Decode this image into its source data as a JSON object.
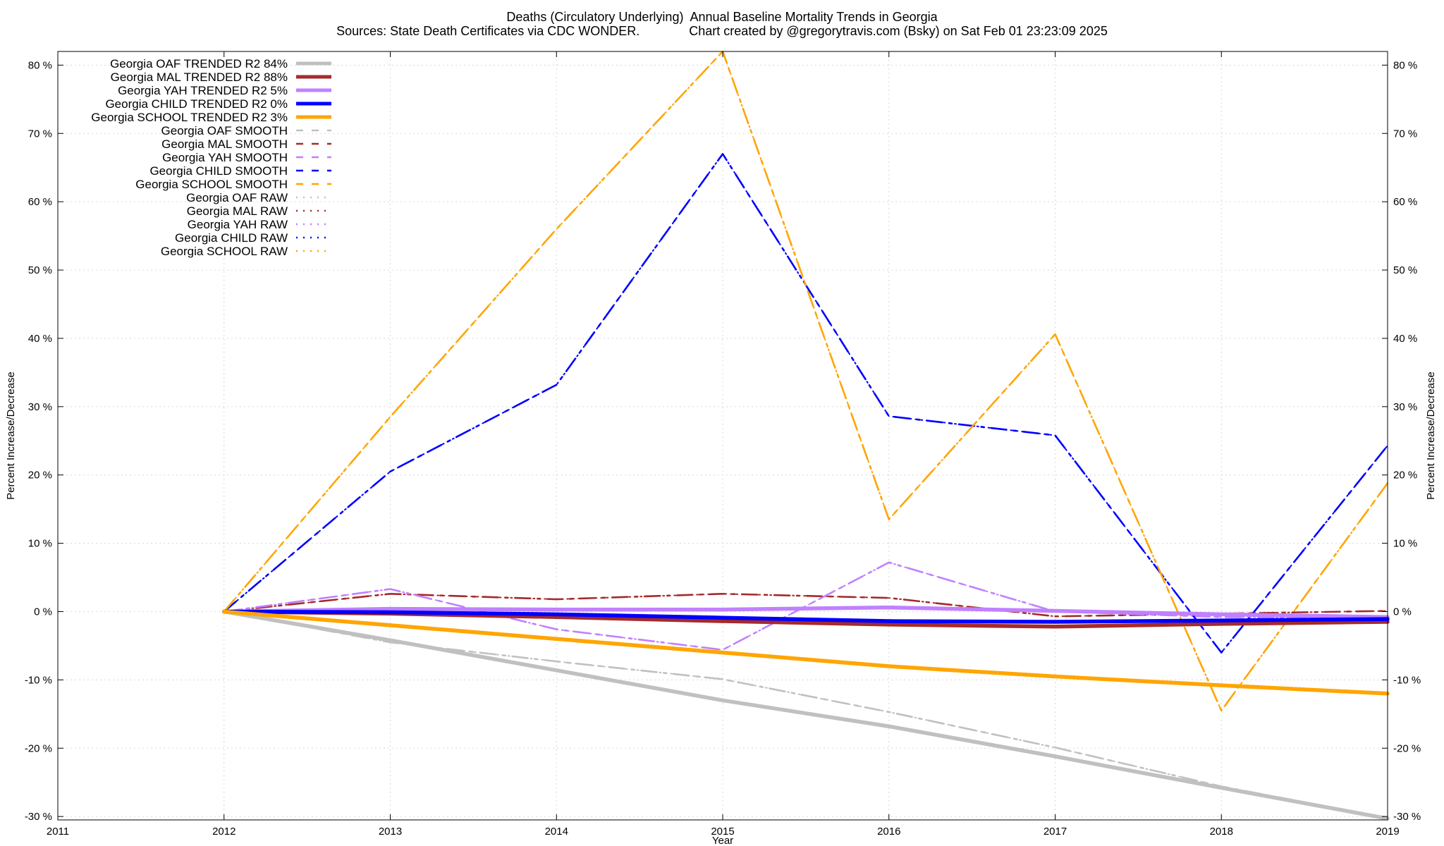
{
  "chart_data": {
    "type": "line",
    "title": "Deaths (Circulatory Underlying)  Annual Baseline Mortality Trends in Georgia",
    "subtitle": "Sources: State Death Certificates via CDC WONDER.              Chart created by @gregorytravis.com (Bsky) on Sat Feb 01 23:23:09 2025",
    "xlabel": "Year",
    "ylabel": "Percent Increase/Decrease",
    "ylabel_right": "Percent Increase/Decrease",
    "xlim": [
      2011,
      2019
    ],
    "ylim": [
      -30.5,
      82
    ],
    "x_ticks": [
      "2011",
      "2012",
      "2013",
      "2014",
      "2015",
      "2016",
      "2017",
      "2018",
      "2019"
    ],
    "y_ticks": [
      "-30 %",
      "-20 %",
      "-10 %",
      "0 %",
      "10 %",
      "20 %",
      "30 %",
      "40 %",
      "50 %",
      "60 %",
      "70 %",
      "80 %"
    ],
    "grid": true,
    "legend_position": "top-left",
    "x": [
      2012,
      2013,
      2014,
      2015,
      2016,
      2017,
      2018,
      2019
    ],
    "series": [
      {
        "name": "Georgia OAF TRENDED R2  84%",
        "style": "trend",
        "color": "#c0c0c0",
        "values": [
          0,
          -4.2,
          -8.6,
          -13.0,
          -16.8,
          -21.2,
          -25.8,
          -30.3
        ]
      },
      {
        "name": "Georgia MAL TRENDED R2  88%",
        "style": "trend",
        "color": "#a52a2a",
        "values": [
          0,
          -0.3,
          -0.8,
          -1.4,
          -1.9,
          -2.2,
          -1.8,
          -1.5
        ]
      },
      {
        "name": "Georgia YAH TRENDED R2   5%",
        "style": "trend",
        "color": "#c080ff",
        "values": [
          0,
          0.4,
          0.3,
          0.3,
          0.6,
          0.1,
          -0.4,
          -0.8
        ]
      },
      {
        "name": "Georgia CHILD TRENDED R2   0%",
        "style": "trend",
        "color": "#0000ff",
        "values": [
          0,
          -0.1,
          -0.4,
          -0.9,
          -1.4,
          -1.5,
          -1.3,
          -1.1
        ]
      },
      {
        "name": "Georgia SCHOOL TRENDED R2   3%",
        "style": "trend",
        "color": "#ffa500",
        "values": [
          0,
          -2.0,
          -4.0,
          -6.0,
          -8.0,
          -9.5,
          -10.8,
          -12.0
        ]
      },
      {
        "name": "Georgia OAF SMOOTH",
        "style": "smooth",
        "color": "#c0c0c0",
        "values": [
          0,
          -4.5,
          -7.3,
          -9.9,
          -14.7,
          -19.9,
          -25.6,
          -30.2
        ]
      },
      {
        "name": "Georgia MAL SMOOTH",
        "style": "smooth",
        "color": "#a52a2a",
        "values": [
          0,
          2.6,
          1.8,
          2.6,
          2.0,
          -0.7,
          -0.3,
          0.1
        ]
      },
      {
        "name": "Georgia YAH SMOOTH",
        "style": "smooth",
        "color": "#c080ff",
        "values": [
          0,
          3.3,
          -2.6,
          -5.6,
          7.2,
          0.0,
          -0.8,
          -1.0
        ]
      },
      {
        "name": "Georgia CHILD SMOOTH",
        "style": "smooth",
        "color": "#0000ff",
        "values": [
          0,
          20.5,
          33.2,
          67.0,
          28.6,
          25.8,
          -6.0,
          24.3
        ]
      },
      {
        "name": "Georgia SCHOOL SMOOTH",
        "style": "smooth",
        "color": "#ffa500",
        "values": [
          0,
          28.5,
          56.0,
          82.0,
          13.5,
          40.6,
          -14.5,
          18.8
        ]
      },
      {
        "name": "Georgia OAF RAW",
        "style": "raw",
        "color": "#c0c0c0",
        "values": [
          0,
          -4.5,
          -7.3,
          -9.9,
          -14.7,
          -19.9,
          -25.6,
          -30.2
        ]
      },
      {
        "name": "Georgia MAL RAW",
        "style": "raw",
        "color": "#a52a2a",
        "values": [
          0,
          2.6,
          1.8,
          2.6,
          2.0,
          -0.7,
          -0.3,
          0.1
        ]
      },
      {
        "name": "Georgia YAH RAW",
        "style": "raw",
        "color": "#c080ff",
        "values": [
          0,
          3.3,
          -2.6,
          -5.6,
          7.2,
          0.0,
          -0.8,
          -1.0
        ]
      },
      {
        "name": "Georgia CHILD RAW",
        "style": "raw",
        "color": "#0000ff",
        "values": [
          0,
          20.5,
          33.2,
          67.0,
          28.6,
          25.8,
          -6.0,
          24.3
        ]
      },
      {
        "name": "Georgia SCHOOL RAW",
        "style": "raw",
        "color": "#ffa500",
        "values": [
          0,
          28.5,
          56.0,
          82.0,
          13.5,
          40.6,
          -14.5,
          18.8
        ]
      }
    ]
  }
}
